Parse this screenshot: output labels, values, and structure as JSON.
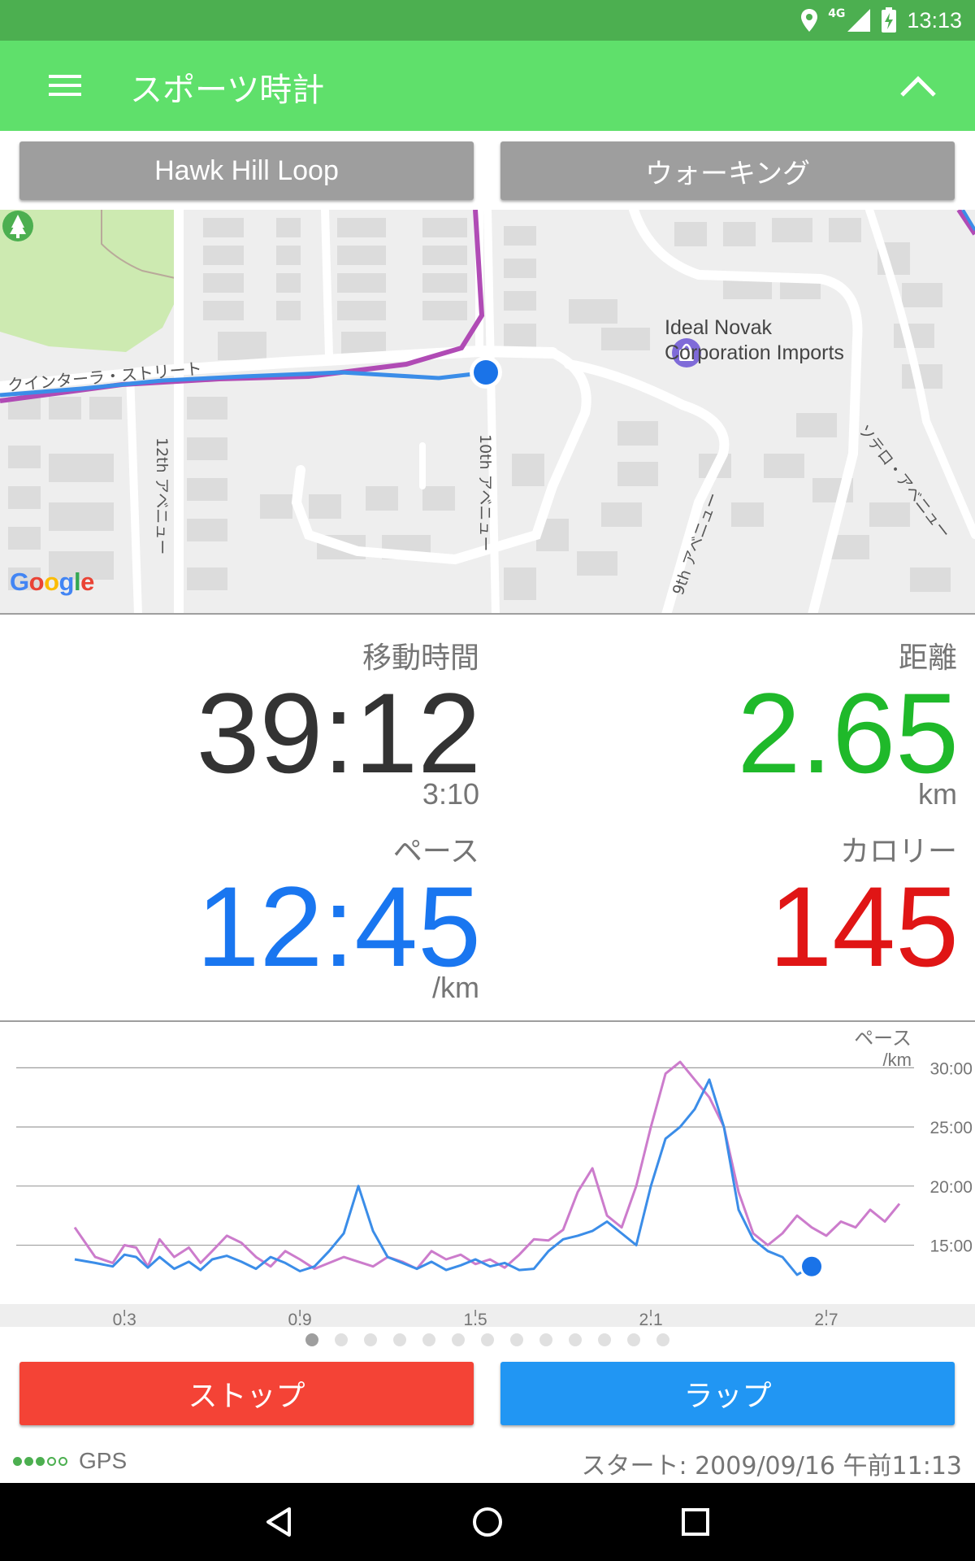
{
  "status_bar": {
    "time": "13:13",
    "network": "4G",
    "icons": [
      "location-icon",
      "signal-icon",
      "battery-charging-icon"
    ]
  },
  "app_bar": {
    "title": "スポーツ時計",
    "icons": [
      "menu-icon",
      "chevron-up-icon"
    ]
  },
  "selectors": {
    "route": "Hawk Hill Loop",
    "activity": "ウォーキング"
  },
  "map": {
    "labels": {
      "poi": "Ideal Novak Corporation Imports",
      "street_quintara": "クインターラ・ストリート",
      "street_12th": "12th アベニュー",
      "street_10th": "10th アベニュー",
      "street_9th": "9th アベニュー",
      "street_sotelo": "ソテロ・アベニュー",
      "google": "Google"
    },
    "colors": {
      "route_pink": "#b04bb5",
      "track_blue": "#3b8de8",
      "park": "#cdeab1",
      "current_location": "#1a73e8"
    }
  },
  "stats": {
    "moving_time": {
      "label": "移動時間",
      "value": "39:12",
      "sub": "3:10",
      "color": "#333333"
    },
    "distance": {
      "label": "距離",
      "value": "2.65",
      "unit": "km",
      "color": "#1fb92a"
    },
    "pace": {
      "label": "ペース",
      "value": "12:45",
      "unit": "/km",
      "color": "#1976f0"
    },
    "calories": {
      "label": "カロリー",
      "value": "145",
      "color": "#e01515"
    }
  },
  "chart_data": {
    "type": "line",
    "ylabel": "ペース",
    "yunit": "/km",
    "y_ticks": [
      "30:00",
      "25:00",
      "20:00",
      "15:00"
    ],
    "y_tick_values": [
      30,
      25,
      20,
      15
    ],
    "ylim": [
      10.5,
      32.5
    ],
    "x_ticks": [
      "0.3",
      "0.9",
      "1.5",
      "2.1",
      "2.7"
    ],
    "x_tick_values": [
      0.3,
      0.9,
      1.5,
      2.1,
      2.7
    ],
    "xlim": [
      -0.07,
      3.0
    ],
    "grid": true,
    "series": [
      {
        "color": "#3b8de8",
        "x": [
          0.13,
          0.2,
          0.26,
          0.3,
          0.34,
          0.38,
          0.42,
          0.47,
          0.52,
          0.56,
          0.6,
          0.65,
          0.7,
          0.75,
          0.8,
          0.85,
          0.9,
          0.95,
          1.0,
          1.05,
          1.1,
          1.15,
          1.2,
          1.25,
          1.3,
          1.35,
          1.4,
          1.45,
          1.5,
          1.55,
          1.6,
          1.65,
          1.7,
          1.75,
          1.8,
          1.85,
          1.9,
          1.95,
          2.0,
          2.05,
          2.1,
          2.15,
          2.2,
          2.25,
          2.3,
          2.35,
          2.4,
          2.45,
          2.5,
          2.55,
          2.6,
          2.65
        ],
        "y": [
          13.8,
          13.5,
          13.2,
          14.2,
          14.0,
          13.1,
          14.0,
          13.0,
          13.6,
          12.9,
          13.8,
          14.1,
          13.6,
          13.0,
          14.0,
          13.5,
          12.8,
          13.2,
          14.5,
          16.0,
          20.0,
          16.2,
          14.0,
          13.5,
          13.0,
          13.6,
          12.9,
          13.3,
          13.8,
          13.2,
          13.5,
          12.9,
          13.0,
          14.5,
          15.5,
          15.8,
          16.2,
          17.0,
          16.0,
          15.0,
          20.0,
          24.0,
          25.0,
          26.5,
          29.0,
          25.0,
          18.0,
          15.5,
          14.5,
          14.0,
          12.5,
          13.2
        ]
      },
      {
        "color": "#cc7ccc",
        "x": [
          0.13,
          0.2,
          0.26,
          0.3,
          0.34,
          0.38,
          0.42,
          0.47,
          0.52,
          0.56,
          0.6,
          0.65,
          0.7,
          0.75,
          0.8,
          0.85,
          0.9,
          0.95,
          1.0,
          1.05,
          1.1,
          1.15,
          1.2,
          1.25,
          1.3,
          1.35,
          1.4,
          1.45,
          1.5,
          1.55,
          1.6,
          1.65,
          1.7,
          1.75,
          1.8,
          1.85,
          1.9,
          1.95,
          2.0,
          2.05,
          2.1,
          2.15,
          2.2,
          2.25,
          2.3,
          2.35,
          2.4,
          2.45,
          2.5,
          2.55,
          2.6,
          2.65,
          2.7,
          2.75,
          2.8,
          2.85,
          2.9,
          2.95
        ],
        "y": [
          16.5,
          14.0,
          13.5,
          15.0,
          14.8,
          13.2,
          15.5,
          14.0,
          14.8,
          13.5,
          14.5,
          15.8,
          15.2,
          14.0,
          13.2,
          14.5,
          13.8,
          13.0,
          13.5,
          14.0,
          13.6,
          13.2,
          14.0,
          13.6,
          13.0,
          14.5,
          13.8,
          14.2,
          13.4,
          13.8,
          13.1,
          14.2,
          15.5,
          15.4,
          16.3,
          19.5,
          21.5,
          17.5,
          16.5,
          20.0,
          25.0,
          29.5,
          30.5,
          29.0,
          27.5,
          25.0,
          19.5,
          16.0,
          15.0,
          16.0,
          17.5,
          16.5,
          15.8,
          17.0,
          16.5,
          18.0,
          17.0,
          18.5
        ]
      }
    ],
    "current_point": {
      "x": 2.65,
      "y": 13.2
    }
  },
  "pager": {
    "count": 13,
    "active": 0
  },
  "actions": {
    "stop": "ストップ",
    "lap": "ラップ"
  },
  "footer": {
    "gps_label": "GPS",
    "gps_strength": 3,
    "gps_max": 5,
    "start_time": "スタート: 2009/09/16 午前11:13"
  },
  "nav_bar": {
    "icons": [
      "back-icon",
      "home-icon",
      "recents-icon"
    ]
  }
}
